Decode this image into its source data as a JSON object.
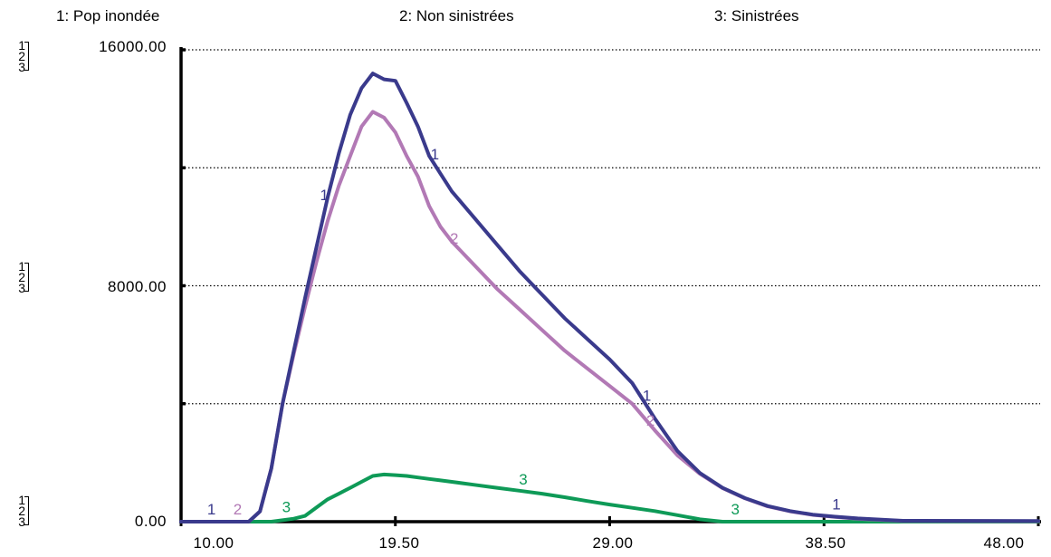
{
  "chart_data": {
    "type": "line",
    "legend_position": "top",
    "grid": true,
    "xlim": [
      10.0,
      48.0
    ],
    "ylim": [
      0,
      16000
    ],
    "y_ticks": [
      "16000.00",
      "8000.00",
      "0.00"
    ],
    "x_ticks": [
      "10.00",
      "19.50",
      "29.00",
      "38.50",
      "48.00"
    ],
    "scale_keys": [
      "1",
      "2",
      "3"
    ],
    "series": [
      {
        "name": "1: Pop inondée",
        "marker": "1",
        "color": "#3a3a8c",
        "x": [
          10.0,
          13.0,
          13.5,
          14.0,
          14.5,
          15.0,
          15.5,
          16.0,
          16.5,
          17.0,
          17.5,
          18.0,
          18.5,
          19.0,
          19.5,
          20.0,
          20.5,
          21.0,
          21.5,
          22.0,
          23.0,
          24.0,
          25.0,
          26.0,
          27.0,
          28.0,
          29.0,
          30.0,
          31.0,
          32.0,
          33.0,
          34.0,
          35.0,
          36.0,
          37.0,
          38.0,
          39.0,
          40.0,
          42.0,
          48.0
        ],
        "values": [
          0,
          0,
          350,
          1800,
          4000,
          5800,
          7600,
          9300,
          11000,
          12500,
          13800,
          14700,
          15200,
          15000,
          14950,
          14200,
          13400,
          12400,
          11800,
          11200,
          10300,
          9400,
          8500,
          7700,
          6900,
          6200,
          5500,
          4700,
          3500,
          2400,
          1650,
          1150,
          800,
          530,
          360,
          240,
          170,
          110,
          30,
          20
        ]
      },
      {
        "name": "2: Non sinistrées",
        "marker": "2",
        "color": "#b279b5",
        "x": [
          10.0,
          13.0,
          13.5,
          14.0,
          14.5,
          15.0,
          15.5,
          16.0,
          16.5,
          17.0,
          17.5,
          18.0,
          18.5,
          19.0,
          19.5,
          20.0,
          20.5,
          21.0,
          21.5,
          22.0,
          23.0,
          24.0,
          25.0,
          26.0,
          27.0,
          28.0,
          29.0,
          30.0,
          31.0,
          32.0,
          33.0,
          34.0,
          35.0,
          36.0,
          37.0,
          38.0,
          39.0,
          40.0,
          42.0,
          48.0
        ],
        "values": [
          0,
          0,
          350,
          1800,
          4000,
          5700,
          7300,
          8800,
          10200,
          11400,
          12400,
          13400,
          13900,
          13700,
          13200,
          12400,
          11700,
          10700,
          10000,
          9500,
          8700,
          7900,
          7200,
          6500,
          5800,
          5200,
          4600,
          4000,
          3100,
          2250,
          1620,
          1140,
          790,
          520,
          350,
          230,
          160,
          100,
          25,
          15
        ]
      },
      {
        "name": "3: Sinistrées",
        "marker": "3",
        "color": "#0e9a57",
        "x": [
          10.0,
          14.0,
          15.0,
          15.5,
          16.0,
          16.5,
          17.0,
          17.5,
          18.0,
          18.5,
          19.0,
          19.5,
          20.0,
          20.5,
          21.0,
          21.5,
          22.0,
          23.0,
          24.0,
          25.0,
          26.0,
          27.0,
          28.0,
          29.0,
          30.0,
          31.0,
          32.0,
          33.0,
          34.0,
          48.0
        ],
        "values": [
          0,
          0,
          100,
          200,
          480,
          760,
          950,
          1150,
          1350,
          1550,
          1600,
          1580,
          1550,
          1500,
          1450,
          1400,
          1350,
          1250,
          1150,
          1050,
          950,
          830,
          700,
          580,
          470,
          360,
          220,
          80,
          0,
          0
        ]
      }
    ]
  }
}
